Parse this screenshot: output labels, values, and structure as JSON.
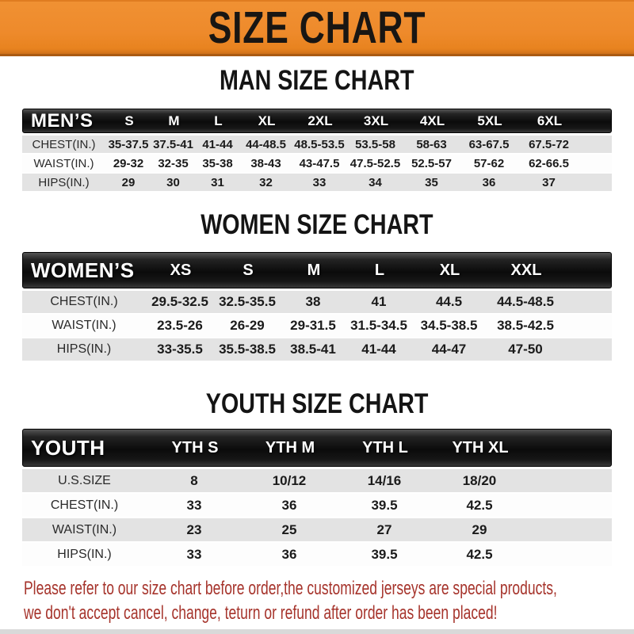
{
  "banner": {
    "title": "SIZE CHART",
    "bg_color": "#EE8A2B",
    "border_color": "#AA5A13",
    "text_color": "#191613"
  },
  "colors": {
    "header_bar": "#0B0B0B",
    "header_text": "#FFFFFF",
    "row_gray": "#E3E3E3",
    "row_white": "#FDFDFD",
    "footer_red": "#A6342C"
  },
  "sections": [
    {
      "heading": "MAN SIZE CHART",
      "corner": "MEN’S",
      "columns": [
        "S",
        "M",
        "L",
        "XL",
        "2XL",
        "3XL",
        "4XL",
        "5XL",
        "6XL"
      ],
      "rows": [
        {
          "label": "CHEST(IN.)",
          "values": [
            "35-37.5",
            "37.5-41",
            "41-44",
            "44-48.5",
            "48.5-53.5",
            "53.5-58",
            "58-63",
            "63-67.5",
            "67.5-72"
          ]
        },
        {
          "label": "WAIST(IN.)",
          "values": [
            "29-32",
            "32-35",
            "35-38",
            "38-43",
            "43-47.5",
            "47.5-52.5",
            "52.5-57",
            "57-62",
            "62-66.5"
          ]
        },
        {
          "label": "HIPS(IN.)",
          "values": [
            "29",
            "30",
            "31",
            "32",
            "33",
            "34",
            "35",
            "36",
            "37"
          ]
        }
      ]
    },
    {
      "heading": "WOMEN SIZE CHART",
      "corner": "WOMEN’S",
      "columns": [
        "XS",
        "S",
        "M",
        "L",
        "XL",
        "XXL"
      ],
      "rows": [
        {
          "label": "CHEST(IN.)",
          "values": [
            "29.5-32.5",
            "32.5-35.5",
            "38",
            "41",
            "44.5",
            "44.5-48.5"
          ]
        },
        {
          "label": "WAIST(IN.)",
          "values": [
            "23.5-26",
            "26-29",
            "29-31.5",
            "31.5-34.5",
            "34.5-38.5",
            "38.5-42.5"
          ]
        },
        {
          "label": "HIPS(IN.)",
          "values": [
            "33-35.5",
            "35.5-38.5",
            "38.5-41",
            "41-44",
            "44-47",
            "47-50"
          ]
        }
      ]
    },
    {
      "heading": "YOUTH SIZE CHART",
      "corner": "YOUTH",
      "columns": [
        "YTH S",
        "YTH M",
        "YTH L",
        "YTH XL"
      ],
      "rows": [
        {
          "label": "U.S.SIZE",
          "values": [
            "8",
            "10/12",
            "14/16",
            "18/20"
          ]
        },
        {
          "label": "CHEST(IN.)",
          "values": [
            "33",
            "36",
            "39.5",
            "42.5"
          ]
        },
        {
          "label": "WAIST(IN.)",
          "values": [
            "23",
            "25",
            "27",
            "29"
          ]
        },
        {
          "label": "HIPS(IN.)",
          "values": [
            "33",
            "36",
            "39.5",
            "42.5"
          ]
        }
      ]
    }
  ],
  "footer": {
    "line1": "Please refer to our size chart before order,the customized jerseys are special products,",
    "line2": "we don't accept cancel, change, teturn or refund after order has been placed!"
  }
}
